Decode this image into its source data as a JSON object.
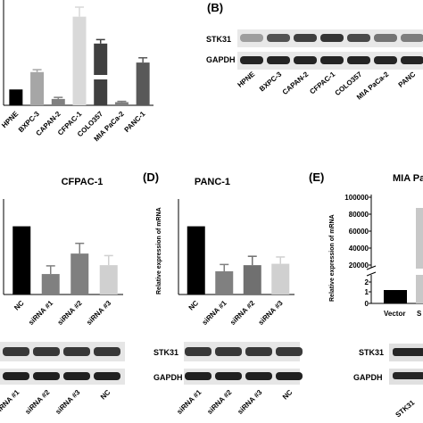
{
  "panel_a": {
    "chart_data": {
      "type": "bar",
      "categories": [
        "HPNE",
        "BXPC-3",
        "CAPAN-2",
        "CFPAC-1",
        "COLO357",
        "MIA PaCa-2",
        "PANC-1"
      ],
      "values": [
        1.0,
        2.1,
        0.4,
        5.6,
        3.9,
        0.2,
        2.7
      ],
      "errors": [
        0.0,
        0.15,
        0.1,
        0.6,
        0.25,
        0.05,
        0.3
      ],
      "colors": [
        "#000000",
        "#a6a6a6",
        "#808080",
        "#d9d9d9",
        "#404040",
        "#7f7f7f",
        "#595959"
      ],
      "ticks": [
        "2",
        "0"
      ],
      "broken_axis": true
    }
  },
  "panel_b": {
    "letter": "(B)",
    "row1": "STK31",
    "row2": "GAPDH",
    "lanes": [
      "HPNE",
      "BXPC-3",
      "CAPAN-2",
      "CFPAC-1",
      "COLO357",
      "MIA PaCa-2",
      "PANC"
    ],
    "band_intensity": [
      0.35,
      0.7,
      0.8,
      0.85,
      0.75,
      0.55,
      0.5
    ]
  },
  "panel_c": {
    "title": "CFPAC-1",
    "chart_data": {
      "type": "bar",
      "categories": [
        "NC",
        "siRNA #1",
        "siRNA #2",
        "siRNA #3"
      ],
      "values": [
        1.0,
        0.3,
        0.6,
        0.43
      ],
      "errors": [
        0.0,
        0.12,
        0.15,
        0.14
      ],
      "colors": [
        "#000000",
        "#808080",
        "#7f7f7f",
        "#d0d0d0"
      ],
      "ylim": [
        0,
        1.4
      ]
    },
    "blot_lanes": [
      "siRNA #1",
      "siRNA #2",
      "siRNA #3",
      "NC"
    ]
  },
  "panel_d": {
    "letter": "(D)",
    "title": "PANC-1",
    "ylabel": "Relative expression of mRNA",
    "chart_data": {
      "type": "bar",
      "categories": [
        "NC",
        "siRNA #1",
        "siRNA #2",
        "siRNA #3"
      ],
      "values": [
        1.0,
        0.34,
        0.43,
        0.45
      ],
      "errors": [
        0.0,
        0.1,
        0.13,
        0.1
      ],
      "colors": [
        "#000000",
        "#808080",
        "#707070",
        "#d0d0d0"
      ],
      "ylim": [
        0,
        1.4
      ]
    },
    "row1": "STK31",
    "row2": "GAPDH",
    "blot_lanes": [
      "siRNA #1",
      "siRNA #2",
      "siRNA #3",
      "NC"
    ]
  },
  "panel_e": {
    "letter": "(E)",
    "title": "MIA Pa",
    "ylabel": "Relative expression of mRNA",
    "yticks": [
      "100000",
      "80000",
      "60000",
      "40000",
      "20000",
      "10000",
      "2",
      "1",
      "0"
    ],
    "chart_data": {
      "type": "bar",
      "categories": [
        "Vector",
        "S"
      ],
      "values": [
        1.0,
        80000
      ],
      "colors": [
        "#000000",
        "#c8c8c8"
      ],
      "broken_axis": true
    },
    "row1": "STK31",
    "row2": "GAPDH",
    "blot_lanes": [
      "STK31"
    ]
  }
}
